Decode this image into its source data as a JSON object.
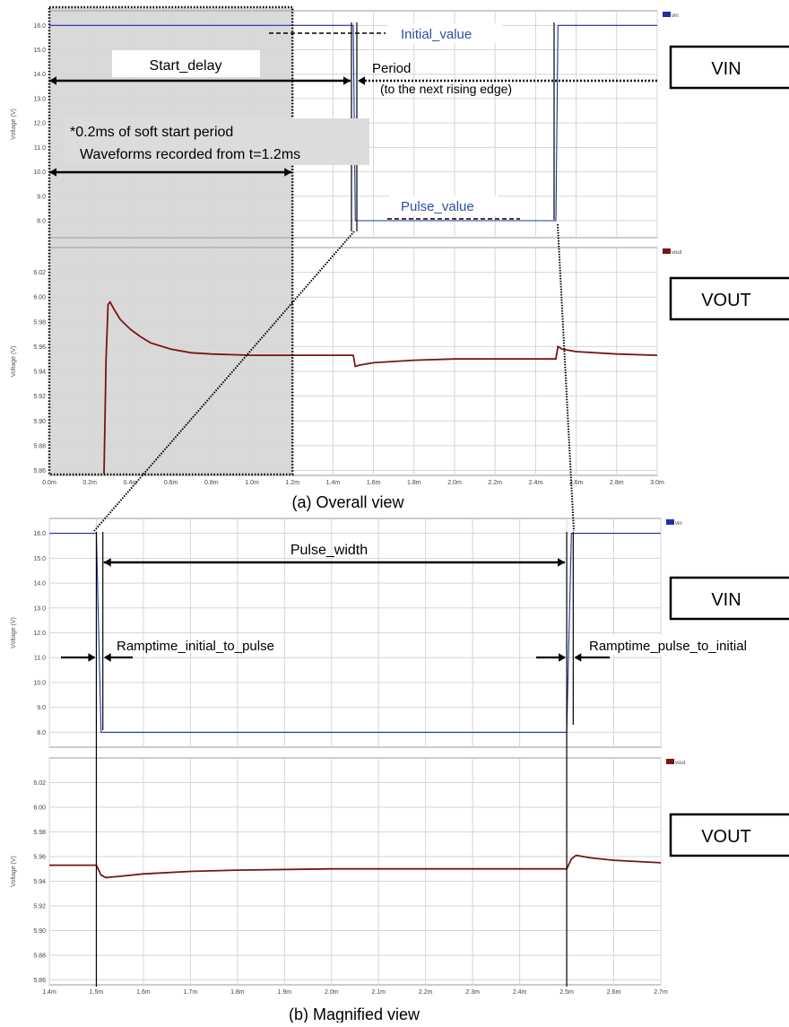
{
  "captions": {
    "overall": "(a) Overall view",
    "magnified": "(b) Magnified view"
  },
  "labels": {
    "vin_box": "VIN",
    "vout_box": "VOUT",
    "y_axis": "Voltage (V)",
    "start_delay": "Start_delay",
    "period": "Period",
    "period_note": "(to the next rising edge)",
    "initial_value": "Initial_value",
    "pulse_value": "Pulse_value",
    "soft_start_line1": "*0.2ms of soft start period",
    "soft_start_line2": "Waveforms recorded from t=1.2ms",
    "pulse_width": "Pulse_width",
    "ramp_initial_to_pulse": "Ramptime_initial_to_pulse",
    "ramp_pulse_to_initial": "Ramptime_pulse_to_initial"
  },
  "colors": {
    "vin": "#1f2fa8",
    "vout": "#7a1414",
    "grid": "#d6d6d6",
    "shade": "#d9d9d9",
    "annotation": "#2d4f9e"
  },
  "chart_data": [
    {
      "id": "overall-vin",
      "type": "line",
      "legend": "vin",
      "ylabel": "Voltage (V)",
      "xlim": [
        0.0,
        3.0
      ],
      "ylim": [
        7.3,
        16.6
      ],
      "yticks": [
        8.0,
        9.0,
        10.0,
        11.0,
        12.0,
        13.0,
        14.0,
        15.0,
        16.0
      ],
      "ytick_labels": [
        "8.0",
        "9.0",
        "10.0",
        "11.0",
        "12.0",
        "13.0",
        "14.0",
        "15.0",
        "16.0"
      ],
      "x_grid": [
        0.0,
        0.2,
        0.4,
        0.6,
        0.8,
        1.0,
        1.2,
        1.4,
        1.6,
        1.8,
        2.0,
        2.2,
        2.4,
        2.6,
        2.8,
        3.0
      ],
      "series": [
        {
          "name": "vin",
          "x": [
            0.0,
            1.5,
            1.51,
            2.5,
            2.51,
            3.0
          ],
          "y": [
            16.0,
            16.0,
            8.0,
            8.0,
            16.0,
            16.0
          ]
        }
      ]
    },
    {
      "id": "overall-vout",
      "type": "line",
      "legend": "vout",
      "ylabel": "Voltage (V)",
      "xlim": [
        0.0,
        3.0
      ],
      "ylim": [
        5.856,
        6.04
      ],
      "yticks": [
        5.86,
        5.88,
        5.9,
        5.92,
        5.94,
        5.96,
        5.98,
        6.0,
        6.02
      ],
      "ytick_labels": [
        "5.86",
        "5.88",
        "5.90",
        "5.92",
        "5.94",
        "5.96",
        "5.98",
        "6.00",
        "6.02"
      ],
      "xticks": [
        0.0,
        0.2,
        0.4,
        0.6,
        0.8,
        1.0,
        1.2,
        1.4,
        1.6,
        1.8,
        2.0,
        2.2,
        2.4,
        2.6,
        2.8,
        3.0
      ],
      "xtick_labels": [
        "0.0m",
        "0.2m",
        "0.4m",
        "0.6m",
        "0.8m",
        "1.0m",
        "1.2m",
        "1.4m",
        "1.6m",
        "1.8m",
        "2.0m",
        "2.2m",
        "2.4m",
        "2.6m",
        "2.8m",
        "3.0m"
      ],
      "series": [
        {
          "name": "vout",
          "x": [
            0.27,
            0.28,
            0.29,
            0.3,
            0.32,
            0.35,
            0.4,
            0.45,
            0.5,
            0.6,
            0.7,
            0.8,
            1.0,
            1.2,
            1.5,
            1.51,
            1.53,
            1.6,
            1.8,
            2.0,
            2.2,
            2.5,
            2.51,
            2.53,
            2.6,
            2.8,
            3.0
          ],
          "y": [
            5.857,
            5.95,
            5.994,
            5.996,
            5.99,
            5.982,
            5.974,
            5.968,
            5.963,
            5.958,
            5.955,
            5.954,
            5.953,
            5.953,
            5.953,
            5.944,
            5.945,
            5.947,
            5.949,
            5.95,
            5.95,
            5.95,
            5.96,
            5.958,
            5.956,
            5.954,
            5.953
          ]
        }
      ]
    },
    {
      "id": "magnified-vin",
      "type": "line",
      "legend": "vin",
      "ylabel": "Voltage (V)",
      "xlim": [
        1.4,
        2.7
      ],
      "ylim": [
        7.4,
        16.6
      ],
      "yticks": [
        8.0,
        9.0,
        10.0,
        11.0,
        12.0,
        13.0,
        14.0,
        15.0,
        16.0
      ],
      "ytick_labels": [
        "8.0",
        "9.0",
        "10.0",
        "11.0",
        "12.0",
        "13.0",
        "14.0",
        "15.0",
        "16.0"
      ],
      "x_grid": [
        1.4,
        1.5,
        1.6,
        1.7,
        1.8,
        1.9,
        2.0,
        2.1,
        2.2,
        2.3,
        2.4,
        2.5,
        2.6,
        2.7
      ],
      "series": [
        {
          "name": "vin",
          "x": [
            1.4,
            1.5,
            1.51,
            2.5,
            2.51,
            2.7
          ],
          "y": [
            16.0,
            16.0,
            8.0,
            8.0,
            16.0,
            16.0
          ]
        }
      ]
    },
    {
      "id": "magnified-vout",
      "type": "line",
      "legend": "vout",
      "ylabel": "Voltage (V)",
      "xlim": [
        1.4,
        2.7
      ],
      "ylim": [
        5.856,
        6.04
      ],
      "yticks": [
        5.86,
        5.88,
        5.9,
        5.92,
        5.94,
        5.96,
        5.98,
        6.0,
        6.02
      ],
      "ytick_labels": [
        "5.86",
        "5.88",
        "5.90",
        "5.92",
        "5.94",
        "5.96",
        "5.98",
        "6.00",
        "6.02"
      ],
      "xticks": [
        1.4,
        1.5,
        1.6,
        1.7,
        1.8,
        1.9,
        2.0,
        2.1,
        2.2,
        2.3,
        2.4,
        2.5,
        2.6,
        2.7
      ],
      "xtick_labels": [
        "1.4m",
        "1.5m",
        "1.6m",
        "1.7m",
        "1.8m",
        "1.9m",
        "2.0m",
        "2.1m",
        "2.2m",
        "2.3m",
        "2.4m",
        "2.5m",
        "2.6m",
        "2.7m"
      ],
      "series": [
        {
          "name": "vout",
          "x": [
            1.4,
            1.5,
            1.51,
            1.52,
            1.55,
            1.6,
            1.7,
            1.8,
            2.0,
            2.2,
            2.4,
            2.5,
            2.51,
            2.52,
            2.55,
            2.6,
            2.65,
            2.7
          ],
          "y": [
            5.953,
            5.953,
            5.945,
            5.943,
            5.944,
            5.946,
            5.948,
            5.949,
            5.95,
            5.95,
            5.95,
            5.95,
            5.958,
            5.961,
            5.959,
            5.957,
            5.956,
            5.955
          ]
        }
      ]
    }
  ]
}
